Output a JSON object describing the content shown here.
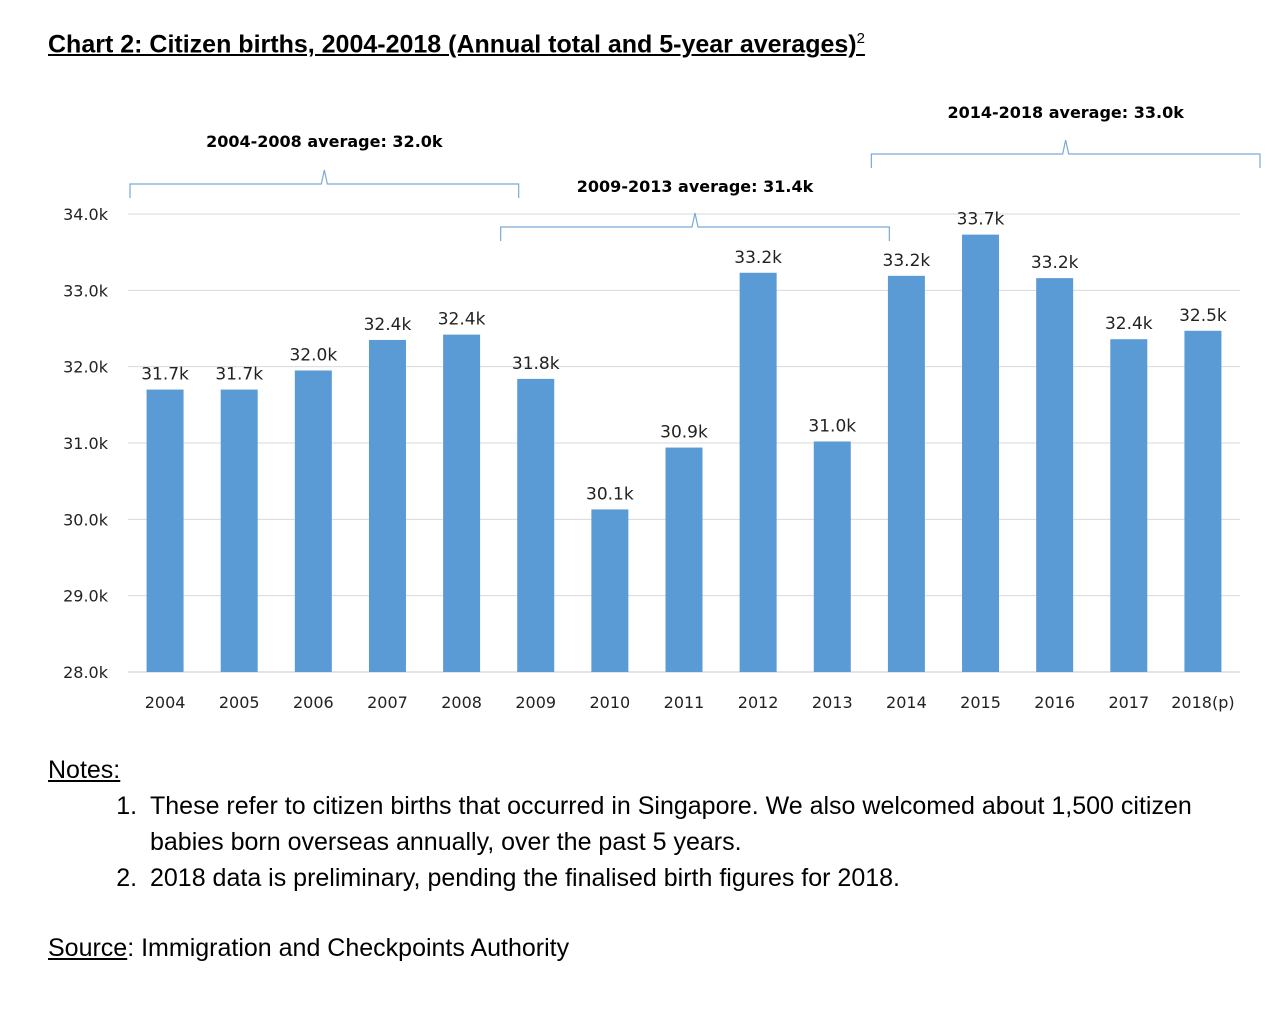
{
  "title": {
    "text": "Chart 2: Citizen births, 2004-2018 (Annual total and 5-year averages)",
    "footnote_ref": "2"
  },
  "chart_data": {
    "type": "bar",
    "categories": [
      "2004",
      "2005",
      "2006",
      "2007",
      "2008",
      "2009",
      "2010",
      "2011",
      "2012",
      "2013",
      "2014",
      "2015",
      "2016",
      "2017",
      "2018(p)"
    ],
    "values": [
      31.7,
      31.7,
      31.95,
      32.35,
      32.42,
      31.84,
      30.13,
      30.94,
      33.23,
      31.02,
      33.19,
      33.73,
      33.16,
      32.36,
      32.47
    ],
    "data_labels": [
      "31.7k",
      "31.7k",
      "32.0k",
      "32.4k",
      "32.4k",
      "31.8k",
      "30.1k",
      "30.9k",
      "33.2k",
      "31.0k",
      "33.2k",
      "33.7k",
      "33.2k",
      "32.4k",
      "32.5k"
    ],
    "ylim": [
      28.0,
      34.0
    ],
    "yticks": [
      28.0,
      29.0,
      30.0,
      31.0,
      32.0,
      33.0,
      34.0
    ],
    "ytick_labels": [
      "28.0k",
      "29.0k",
      "30.0k",
      "31.0k",
      "32.0k",
      "33.0k",
      "34.0k"
    ],
    "grid": true,
    "bar_color": "#5b9bd5",
    "bracket_color": "#7aaad6",
    "annotations": [
      {
        "label": "2004-2008 average: 32.0k",
        "from": "2004",
        "to": "2008",
        "value": 32.0
      },
      {
        "label": "2009-2013 average: 31.4k",
        "from": "2009",
        "to": "2013",
        "value": 31.4
      },
      {
        "label": "2014-2018 average: 33.0k",
        "from": "2014",
        "to": "2018(p)",
        "value": 33.0
      }
    ]
  },
  "notes": {
    "heading": "Notes:",
    "items": [
      "These refer to citizen births that occurred in Singapore. We also welcomed about 1,500 citizen babies born overseas annually, over the past 5 years.",
      "2018 data is preliminary, pending the finalised birth figures for 2018."
    ]
  },
  "source": {
    "label": "Source",
    "text": ": Immigration and Checkpoints Authority"
  }
}
